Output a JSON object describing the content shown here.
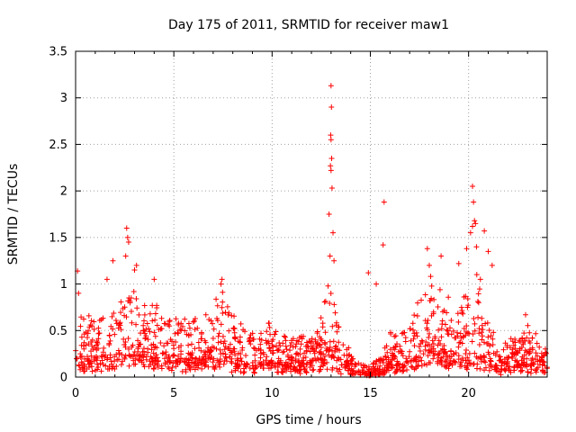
{
  "chart_data": {
    "type": "scatter",
    "title": "Day 175 of 2011, SRMTID for receiver maw1",
    "xlabel": "GPS time / hours",
    "ylabel": "SRMTID / TECUs",
    "xlim": [
      0,
      24
    ],
    "ylim": [
      0,
      3.5
    ],
    "xticks": [
      0,
      5,
      10,
      15,
      20
    ],
    "xtick_labels": [
      "0",
      "5",
      "10",
      "15",
      "20"
    ],
    "yticks": [
      0,
      0.5,
      1,
      1.5,
      2,
      2.5,
      3,
      3.5
    ],
    "ytick_labels": [
      "0",
      "0.5",
      "1",
      "1.5",
      "2",
      "2.5",
      "3",
      "3.5"
    ],
    "grid": true,
    "marker": "+",
    "color": "#ff0000",
    "series": [
      {
        "name": "maw1",
        "baseline": {
          "x": [
            0,
            1,
            2,
            2.5,
            3,
            4,
            5,
            6,
            7,
            7.5,
            8,
            9,
            10,
            11,
            12,
            12.7,
            13,
            13.5,
            14,
            14.5,
            15,
            15.5,
            16,
            16.5,
            17,
            17.5,
            18,
            18.5,
            19,
            19.5,
            20,
            20.5,
            21,
            21.5,
            22,
            22.5,
            23,
            23.5,
            24
          ],
          "y": [
            0.35,
            0.3,
            0.35,
            0.55,
            0.45,
            0.38,
            0.3,
            0.32,
            0.35,
            0.45,
            0.3,
            0.25,
            0.28,
            0.22,
            0.2,
            0.4,
            0.5,
            0.2,
            0.15,
            0.1,
            0.06,
            0.1,
            0.25,
            0.22,
            0.3,
            0.4,
            0.55,
            0.5,
            0.4,
            0.35,
            0.45,
            0.5,
            0.3,
            0.15,
            0.2,
            0.25,
            0.25,
            0.2,
            0.15
          ]
        },
        "peaks": [
          {
            "x": 0.1,
            "y": 1.14
          },
          {
            "x": 0.15,
            "y": 0.9
          },
          {
            "x": 1.6,
            "y": 1.05
          },
          {
            "x": 1.9,
            "y": 1.25
          },
          {
            "x": 2.6,
            "y": 1.6
          },
          {
            "x": 2.65,
            "y": 1.5
          },
          {
            "x": 2.7,
            "y": 1.45
          },
          {
            "x": 2.55,
            "y": 1.3
          },
          {
            "x": 3.0,
            "y": 1.15
          },
          {
            "x": 3.1,
            "y": 1.2
          },
          {
            "x": 4.0,
            "y": 1.05
          },
          {
            "x": 7.4,
            "y": 1.0
          },
          {
            "x": 7.45,
            "y": 1.05
          },
          {
            "x": 12.9,
            "y": 1.75
          },
          {
            "x": 12.95,
            "y": 1.3
          },
          {
            "x": 13.0,
            "y": 3.13
          },
          {
            "x": 13.02,
            "y": 2.9
          },
          {
            "x": 12.98,
            "y": 2.6
          },
          {
            "x": 13.0,
            "y": 2.55
          },
          {
            "x": 13.03,
            "y": 2.35
          },
          {
            "x": 12.97,
            "y": 2.27
          },
          {
            "x": 13.0,
            "y": 2.22
          },
          {
            "x": 13.05,
            "y": 2.03
          },
          {
            "x": 13.1,
            "y": 1.55
          },
          {
            "x": 13.15,
            "y": 1.25
          },
          {
            "x": 14.9,
            "y": 1.12
          },
          {
            "x": 15.7,
            "y": 1.88
          },
          {
            "x": 15.65,
            "y": 1.42
          },
          {
            "x": 15.3,
            "y": 1.0
          },
          {
            "x": 17.9,
            "y": 1.38
          },
          {
            "x": 18.0,
            "y": 1.2
          },
          {
            "x": 18.6,
            "y": 1.3
          },
          {
            "x": 19.5,
            "y": 1.22
          },
          {
            "x": 19.9,
            "y": 1.38
          },
          {
            "x": 20.2,
            "y": 2.05
          },
          {
            "x": 20.25,
            "y": 1.88
          },
          {
            "x": 20.3,
            "y": 1.68
          },
          {
            "x": 20.2,
            "y": 1.62
          },
          {
            "x": 20.35,
            "y": 1.65
          },
          {
            "x": 20.1,
            "y": 1.55
          },
          {
            "x": 20.4,
            "y": 1.4
          },
          {
            "x": 20.8,
            "y": 1.57
          },
          {
            "x": 21.0,
            "y": 1.35
          },
          {
            "x": 21.2,
            "y": 1.2
          },
          {
            "x": 20.6,
            "y": 1.05
          },
          {
            "x": 22.9,
            "y": 0.67
          }
        ]
      }
    ]
  }
}
